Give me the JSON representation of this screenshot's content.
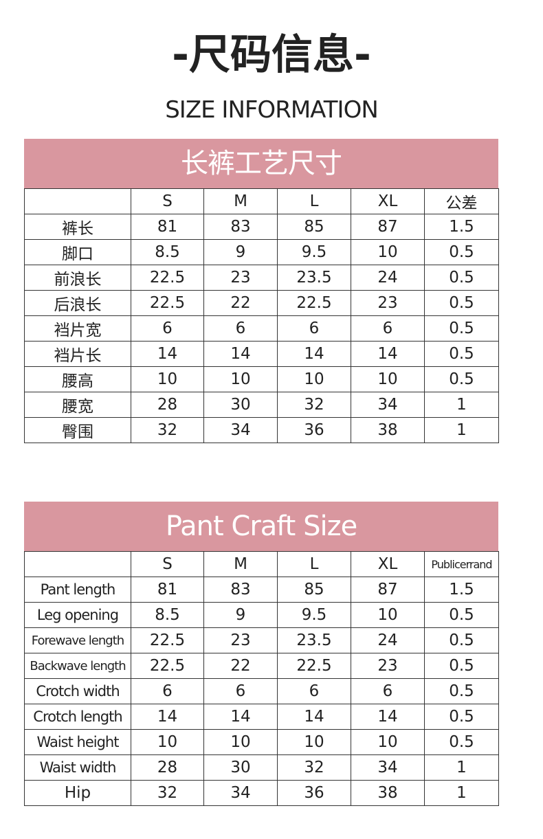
{
  "header": {
    "title": "-尺码信息-",
    "subtitle": "SIZE INFORMATION"
  },
  "tables": [
    {
      "title": "长裤工艺尺寸",
      "columns": [
        "S",
        "M",
        "L",
        "XL",
        "公差"
      ],
      "rows": [
        {
          "label": "裤长",
          "values": [
            "81",
            "83",
            "85",
            "87",
            "1.5"
          ]
        },
        {
          "label": "脚口",
          "values": [
            "8.5",
            "9",
            "9.5",
            "10",
            "0.5"
          ]
        },
        {
          "label": "前浪长",
          "values": [
            "22.5",
            "23",
            "23.5",
            "24",
            "0.5"
          ]
        },
        {
          "label": "后浪长",
          "values": [
            "22.5",
            "22",
            "22.5",
            "23",
            "0.5"
          ]
        },
        {
          "label": "裆片宽",
          "values": [
            "6",
            "6",
            "6",
            "6",
            "0.5"
          ]
        },
        {
          "label": "裆片长",
          "values": [
            "14",
            "14",
            "14",
            "14",
            "0.5"
          ]
        },
        {
          "label": "腰高",
          "values": [
            "10",
            "10",
            "10",
            "10",
            "0.5"
          ]
        },
        {
          "label": "腰宽",
          "values": [
            "28",
            "30",
            "32",
            "34",
            "1"
          ]
        },
        {
          "label": "臀围",
          "values": [
            "32",
            "34",
            "36",
            "38",
            "1"
          ]
        }
      ]
    },
    {
      "title": "Pant Craft Size",
      "columns": [
        "S",
        "M",
        "L",
        "XL",
        "Publicerrand"
      ],
      "rows": [
        {
          "label": "Pant length",
          "values": [
            "81",
            "83",
            "85",
            "87",
            "1.5"
          ]
        },
        {
          "label": "Leg opening",
          "values": [
            "8.5",
            "9",
            "9.5",
            "10",
            "0.5"
          ]
        },
        {
          "label": "Forewave length",
          "values": [
            "22.5",
            "23",
            "23.5",
            "24",
            "0.5"
          ]
        },
        {
          "label": "Backwave length",
          "values": [
            "22.5",
            "22",
            "22.5",
            "23",
            "0.5"
          ]
        },
        {
          "label": "Crotch width",
          "values": [
            "6",
            "6",
            "6",
            "6",
            "0.5"
          ]
        },
        {
          "label": "Crotch length",
          "values": [
            "14",
            "14",
            "14",
            "14",
            "0.5"
          ]
        },
        {
          "label": "Waist height",
          "values": [
            "10",
            "10",
            "10",
            "10",
            "0.5"
          ]
        },
        {
          "label": "Waist width",
          "values": [
            "28",
            "30",
            "32",
            "34",
            "1"
          ]
        },
        {
          "label": "Hip",
          "values": [
            "32",
            "34",
            "36",
            "38",
            "1"
          ]
        }
      ]
    }
  ]
}
